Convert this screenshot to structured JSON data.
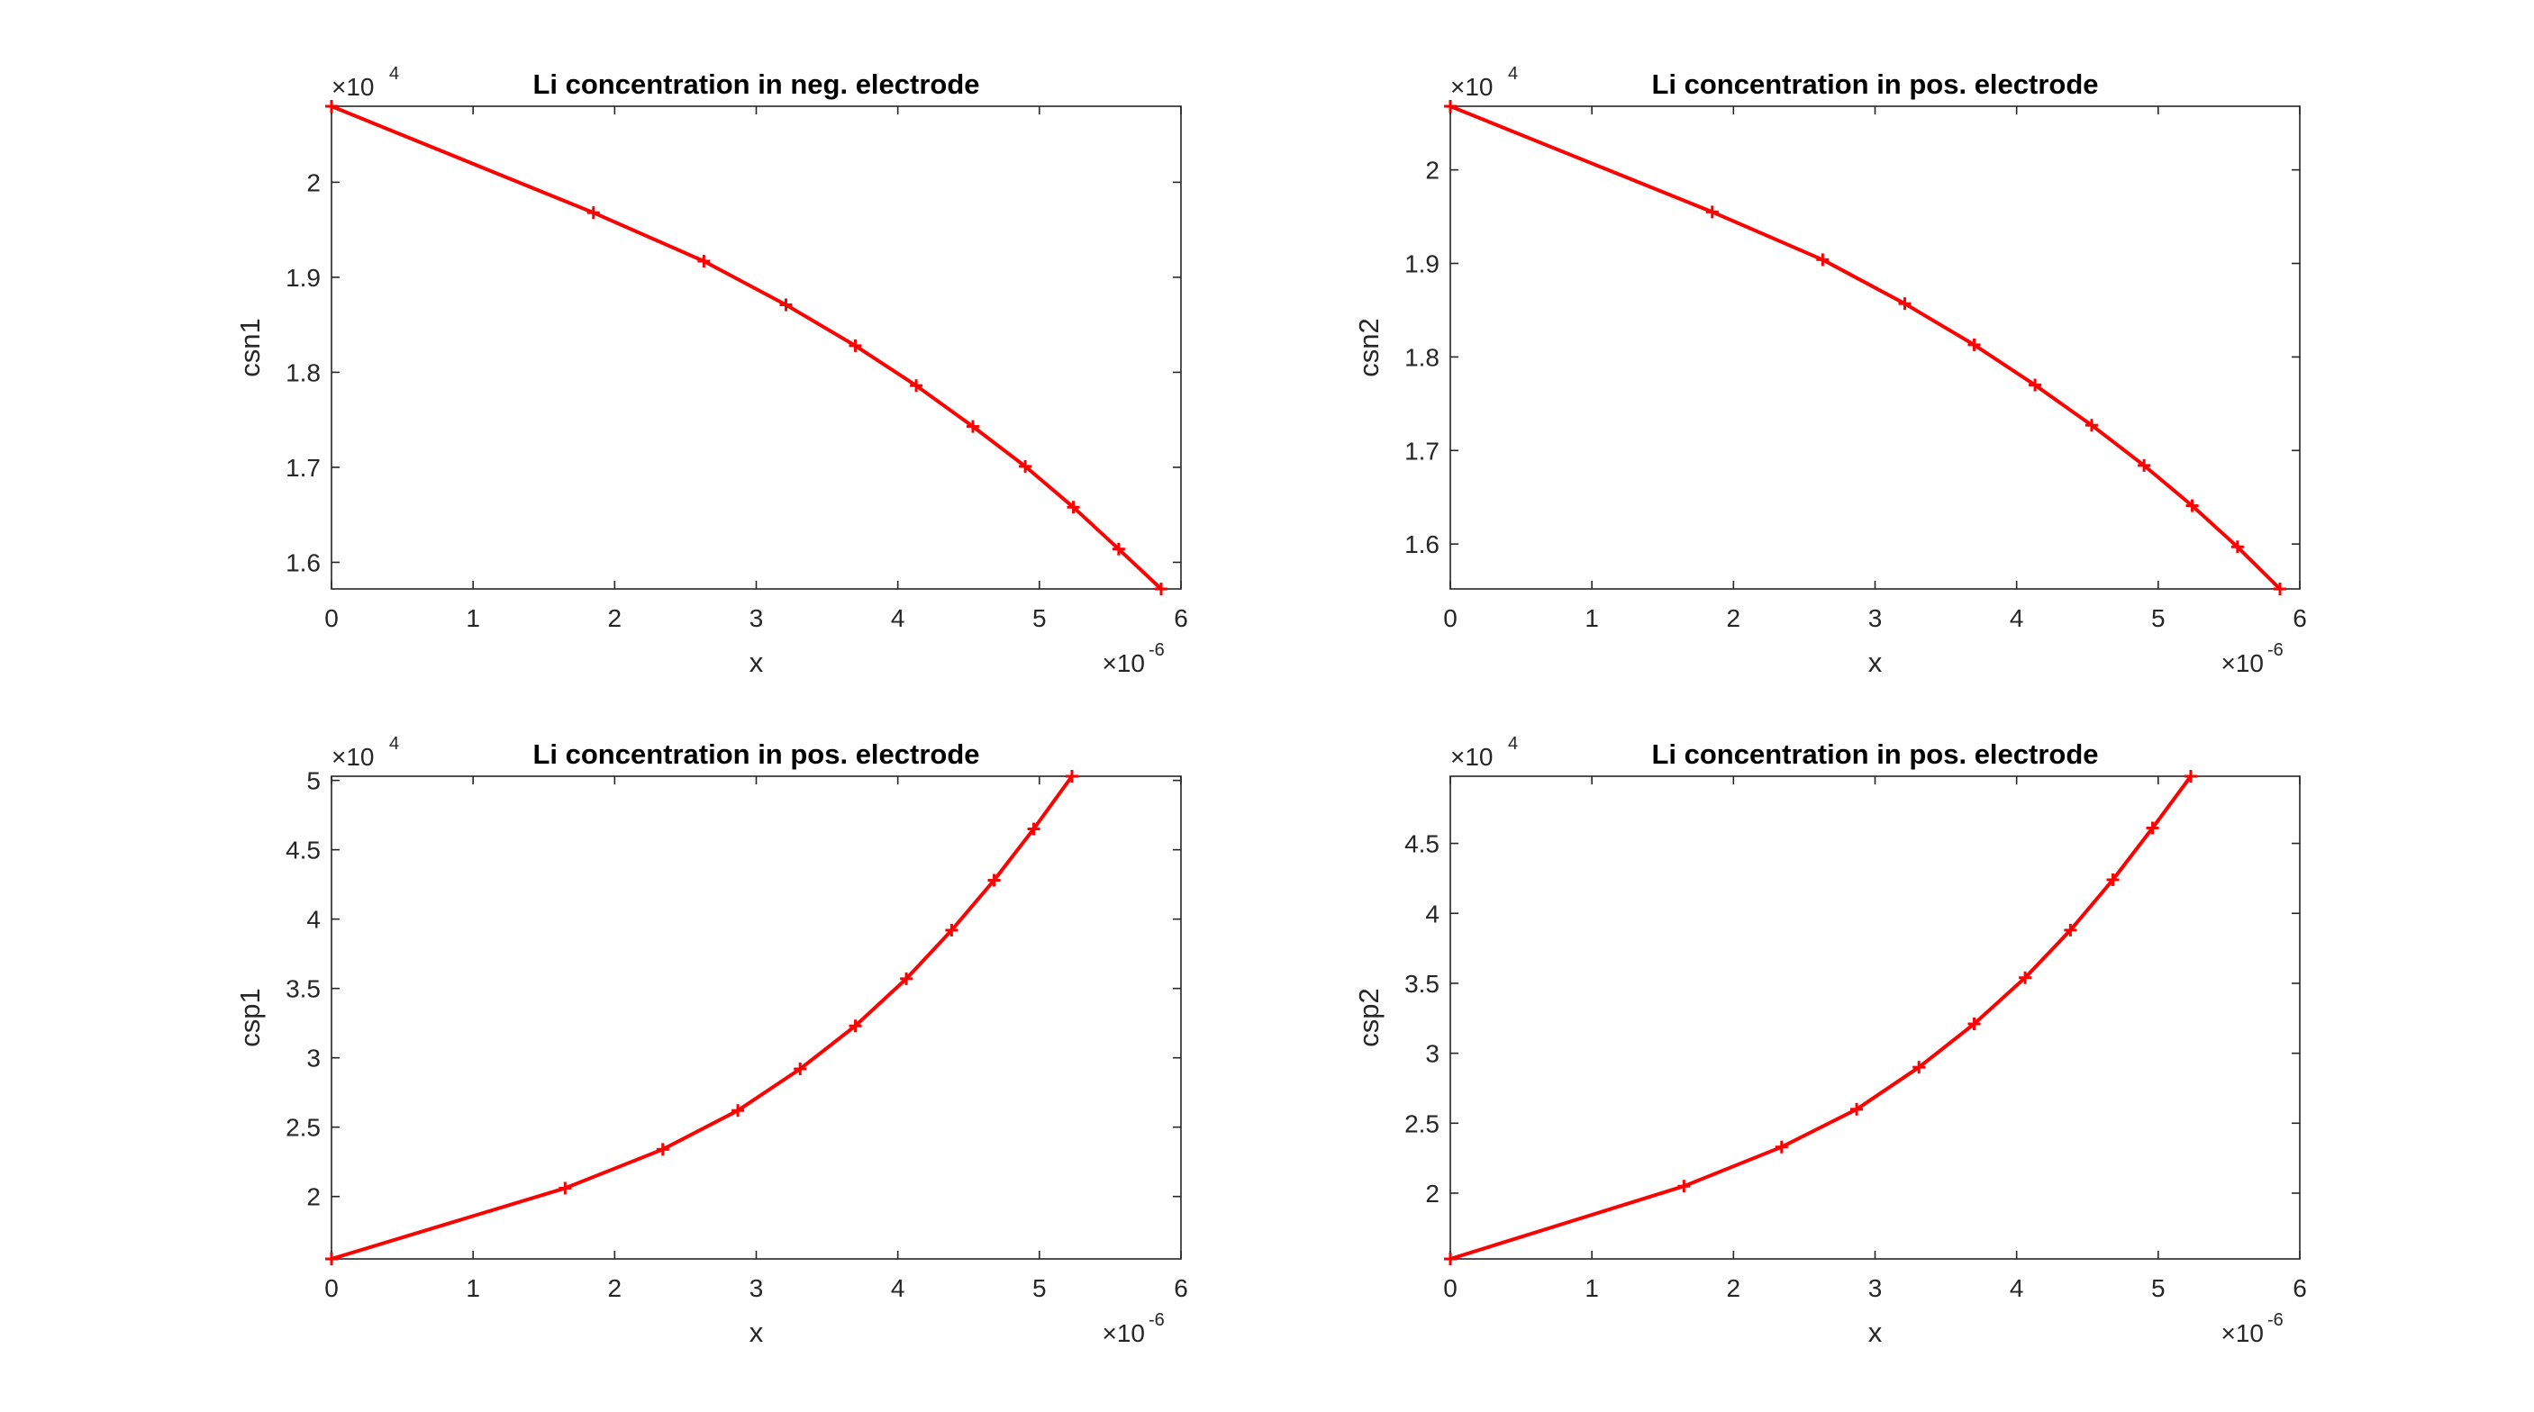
{
  "figure": {
    "background": "#ffffff",
    "axis_color": "#262626",
    "line_color": "#ff0000"
  },
  "chart_data": [
    {
      "type": "line",
      "title": "Li concentration in neg. electrode",
      "xlabel": "x",
      "ylabel": "csn1",
      "x_exponent_label": "×10",
      "x_exponent": "-6",
      "y_exponent_label": "×10",
      "y_exponent": "4",
      "xlim": [
        0,
        6
      ],
      "ylim": [
        1.572,
        2.08
      ],
      "xticks": [
        0,
        1,
        2,
        3,
        4,
        5,
        6
      ],
      "xtick_labels": [
        "0",
        "1",
        "2",
        "3",
        "4",
        "5",
        "6"
      ],
      "yticks": [
        1.6,
        1.7,
        1.8,
        1.9,
        2.0
      ],
      "ytick_labels": [
        "1.6",
        "1.7",
        "1.8",
        "1.9",
        "2"
      ],
      "grid": false,
      "marker": "+",
      "series": [
        {
          "color": "#ff0000",
          "x": [
            0,
            1.85,
            2.63,
            3.21,
            3.7,
            4.13,
            4.53,
            4.9,
            5.24,
            5.56,
            5.86
          ],
          "y": [
            2.08,
            1.968,
            1.917,
            1.871,
            1.828,
            1.786,
            1.743,
            1.701,
            1.658,
            1.614,
            1.572
          ]
        }
      ]
    },
    {
      "type": "line",
      "title": "Li concentration in pos. electrode",
      "xlabel": "x",
      "ylabel": "csn2",
      "x_exponent_label": "×10",
      "x_exponent": "-6",
      "y_exponent_label": "×10",
      "y_exponent": "4",
      "xlim": [
        0,
        6
      ],
      "ylim": [
        1.552,
        2.068
      ],
      "xticks": [
        0,
        1,
        2,
        3,
        4,
        5,
        6
      ],
      "xtick_labels": [
        "0",
        "1",
        "2",
        "3",
        "4",
        "5",
        "6"
      ],
      "yticks": [
        1.6,
        1.7,
        1.8,
        1.9,
        2.0
      ],
      "ytick_labels": [
        "1.6",
        "1.7",
        "1.8",
        "1.9",
        "2"
      ],
      "grid": false,
      "marker": "+",
      "series": [
        {
          "color": "#ff0000",
          "x": [
            0,
            1.85,
            2.63,
            3.21,
            3.7,
            4.13,
            4.53,
            4.9,
            5.24,
            5.56,
            5.86
          ],
          "y": [
            2.068,
            1.955,
            1.904,
            1.857,
            1.813,
            1.77,
            1.727,
            1.684,
            1.641,
            1.597,
            1.552
          ]
        }
      ]
    },
    {
      "type": "line",
      "title": "Li concentration in pos. electrode",
      "xlabel": "x",
      "ylabel": "csp1",
      "x_exponent_label": "×10",
      "x_exponent": "-6",
      "y_exponent_label": "×10",
      "y_exponent": "4",
      "xlim": [
        0,
        6
      ],
      "ylim": [
        1.55,
        5.03
      ],
      "xticks": [
        0,
        1,
        2,
        3,
        4,
        5,
        6
      ],
      "xtick_labels": [
        "0",
        "1",
        "2",
        "3",
        "4",
        "5",
        "6"
      ],
      "yticks": [
        2.0,
        2.5,
        3.0,
        3.5,
        4.0,
        4.5,
        5.0
      ],
      "ytick_labels": [
        "2",
        "2.5",
        "3",
        "3.5",
        "4",
        "4.5",
        "5"
      ],
      "grid": false,
      "marker": "+",
      "series": [
        {
          "color": "#ff0000",
          "x": [
            0,
            1.65,
            2.34,
            2.87,
            3.31,
            3.7,
            4.06,
            4.38,
            4.68,
            4.96,
            5.23
          ],
          "y": [
            1.55,
            2.06,
            2.34,
            2.62,
            2.92,
            3.23,
            3.57,
            3.92,
            4.28,
            4.65,
            5.03
          ]
        }
      ]
    },
    {
      "type": "line",
      "title": "Li concentration in pos. electrode",
      "xlabel": "x",
      "ylabel": "csp2",
      "x_exponent_label": "×10",
      "x_exponent": "-6",
      "y_exponent_label": "×10",
      "y_exponent": "4",
      "xlim": [
        0,
        6
      ],
      "ylim": [
        1.53,
        4.98
      ],
      "xticks": [
        0,
        1,
        2,
        3,
        4,
        5,
        6
      ],
      "xtick_labels": [
        "0",
        "1",
        "2",
        "3",
        "4",
        "5",
        "6"
      ],
      "yticks": [
        2.0,
        2.5,
        3.0,
        3.5,
        4.0,
        4.5
      ],
      "ytick_labels": [
        "2",
        "2.5",
        "3",
        "3.5",
        "4",
        "4.5"
      ],
      "grid": false,
      "marker": "+",
      "series": [
        {
          "color": "#ff0000",
          "x": [
            0,
            1.65,
            2.34,
            2.87,
            3.31,
            3.7,
            4.06,
            4.38,
            4.68,
            4.96,
            5.23
          ],
          "y": [
            1.53,
            2.05,
            2.33,
            2.6,
            2.9,
            3.21,
            3.54,
            3.88,
            4.24,
            4.61,
            4.98
          ]
        }
      ]
    }
  ]
}
